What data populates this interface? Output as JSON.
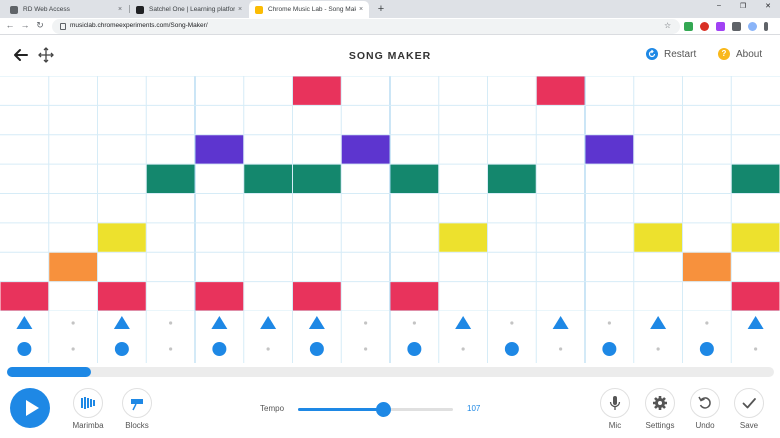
{
  "browser": {
    "tabs": [
      {
        "title": "RD Web Access",
        "active": false,
        "favicon_color": "#5f6368"
      },
      {
        "title": "Satchel One | Learning platform",
        "active": false,
        "favicon_color": "#202124"
      },
      {
        "title": "Chrome Music Lab - Song Maker",
        "active": true,
        "favicon_color": "#fbbc04"
      }
    ],
    "close_glyph": "×",
    "new_tab_glyph": "+",
    "url": "musiclab.chromeexperiments.com/Song-Maker/",
    "window_controls": [
      "–",
      "❐",
      "✕"
    ]
  },
  "app": {
    "title": "SONG MAKER",
    "restart_label": "Restart",
    "about_label": "About",
    "about_glyph": "?",
    "back_icon": "back-arrow-icon",
    "move_icon": "move-arrows-icon"
  },
  "grid": {
    "columns": 16,
    "rows": 8,
    "beats_per_bar": 4,
    "notes": [
      {
        "col": 0,
        "row": 7,
        "color": "#e8335c"
      },
      {
        "col": 1,
        "row": 6,
        "color": "#f7913d"
      },
      {
        "col": 2,
        "row": 5,
        "color": "#ede12d"
      },
      {
        "col": 2,
        "row": 7,
        "color": "#e8335c"
      },
      {
        "col": 3,
        "row": 3,
        "color": "#14876d"
      },
      {
        "col": 4,
        "row": 2,
        "color": "#5d35cf"
      },
      {
        "col": 4,
        "row": 7,
        "color": "#e8335c"
      },
      {
        "col": 5,
        "row": 3,
        "color": "#14876d"
      },
      {
        "col": 6,
        "row": 0,
        "color": "#e8335c"
      },
      {
        "col": 6,
        "row": 3,
        "color": "#14876d"
      },
      {
        "col": 6,
        "row": 7,
        "color": "#e8335c"
      },
      {
        "col": 7,
        "row": 2,
        "color": "#5d35cf"
      },
      {
        "col": 8,
        "row": 3,
        "color": "#14876d"
      },
      {
        "col": 8,
        "row": 7,
        "color": "#e8335c"
      },
      {
        "col": 9,
        "row": 5,
        "color": "#ede12d"
      },
      {
        "col": 10,
        "row": 3,
        "color": "#14876d"
      },
      {
        "col": 11,
        "row": 0,
        "color": "#e8335c"
      },
      {
        "col": 12,
        "row": 2,
        "color": "#5d35cf"
      },
      {
        "col": 13,
        "row": 5,
        "color": "#ede12d"
      },
      {
        "col": 14,
        "row": 6,
        "color": "#f7913d"
      },
      {
        "col": 15,
        "row": 3,
        "color": "#14876d"
      },
      {
        "col": 15,
        "row": 5,
        "color": "#ede12d"
      },
      {
        "col": 15,
        "row": 7,
        "color": "#e8335c"
      }
    ],
    "line_color": "#d6ecf7",
    "bar_line_color": "#a9d4ef"
  },
  "percussion": {
    "color": "#1e88e5",
    "triangles": [
      true,
      false,
      true,
      false,
      true,
      true,
      true,
      false,
      false,
      true,
      false,
      true,
      false,
      true,
      false,
      true
    ],
    "circles": [
      true,
      false,
      true,
      false,
      true,
      false,
      true,
      false,
      true,
      false,
      true,
      false,
      true,
      false,
      true,
      false
    ]
  },
  "scroll": {
    "position": 0.11
  },
  "controls": {
    "instrument_label": "Marimba",
    "percussion_label": "Blocks",
    "tempo_label": "Tempo",
    "tempo_value": "107",
    "tempo_fraction": 0.55,
    "mic_label": "Mic",
    "settings_label": "Settings",
    "undo_label": "Undo",
    "save_label": "Save",
    "accent_color": "#1e88e5"
  }
}
